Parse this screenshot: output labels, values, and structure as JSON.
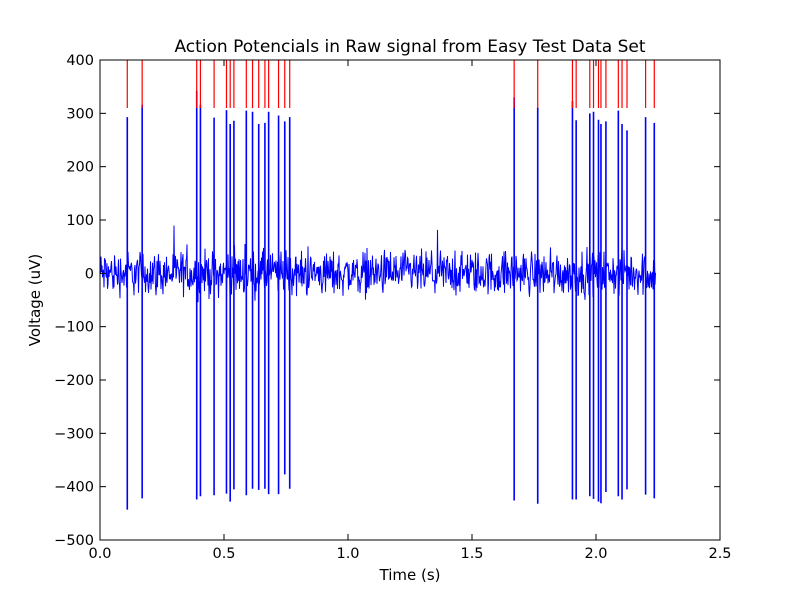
{
  "chart_data": {
    "type": "line",
    "title": "Action Potencials in Raw signal from Easy Test Data Set",
    "xlabel": "Time (s)",
    "ylabel": "Voltage (uV)",
    "xlim": [
      0.0,
      2.5
    ],
    "ylim": [
      -500,
      400
    ],
    "x_ticks": [
      0.0,
      0.5,
      1.0,
      1.5,
      2.0,
      2.5
    ],
    "x_tick_labels": [
      "0.0",
      "0.5",
      "1.0",
      "1.5",
      "2.0",
      "2.5"
    ],
    "y_ticks": [
      400,
      300,
      200,
      100,
      0,
      -100,
      -200,
      -300,
      -400,
      -500
    ],
    "y_tick_labels": [
      "400",
      "300",
      "200",
      "100",
      "0",
      "−100",
      "−200",
      "−300",
      "−400",
      "−500"
    ],
    "grid": false,
    "legend": "none",
    "signal": {
      "color": "#0000ff",
      "x_range": [
        0.0,
        2.24
      ],
      "baseline_noise_amplitude_uV": 45
    },
    "series": [
      {
        "color": "#0000ff",
        "peaks": [
          {
            "t": 0.11,
            "max": 293,
            "min": -443
          },
          {
            "t": 0.17,
            "max": 316,
            "min": -422
          },
          {
            "t": 0.39,
            "max": 342,
            "min": -424
          },
          {
            "t": 0.405,
            "max": 316,
            "min": -418
          },
          {
            "t": 0.46,
            "max": 292,
            "min": -416
          },
          {
            "t": 0.51,
            "max": 306,
            "min": -413
          },
          {
            "t": 0.525,
            "max": 280,
            "min": -428
          },
          {
            "t": 0.54,
            "max": 286,
            "min": -405
          },
          {
            "t": 0.59,
            "max": 305,
            "min": -416
          },
          {
            "t": 0.615,
            "max": 303,
            "min": -404
          },
          {
            "t": 0.64,
            "max": 280,
            "min": -406
          },
          {
            "t": 0.665,
            "max": 282,
            "min": -404
          },
          {
            "t": 0.68,
            "max": 303,
            "min": -414
          },
          {
            "t": 0.72,
            "max": 296,
            "min": -414
          },
          {
            "t": 0.745,
            "max": 285,
            "min": -377
          },
          {
            "t": 0.765,
            "max": 293,
            "min": -404
          },
          {
            "t": 1.67,
            "max": 330,
            "min": -426
          },
          {
            "t": 1.765,
            "max": 311,
            "min": -432
          },
          {
            "t": 1.905,
            "max": 323,
            "min": -424
          },
          {
            "t": 1.92,
            "max": 287,
            "min": -424
          },
          {
            "t": 1.975,
            "max": 300,
            "min": -418
          },
          {
            "t": 1.99,
            "max": 303,
            "min": -423
          },
          {
            "t": 2.01,
            "max": 288,
            "min": -428
          },
          {
            "t": 2.02,
            "max": 280,
            "min": -431
          },
          {
            "t": 2.04,
            "max": 285,
            "min": -410
          },
          {
            "t": 2.09,
            "max": 305,
            "min": -418
          },
          {
            "t": 2.105,
            "max": 280,
            "min": -424
          },
          {
            "t": 2.125,
            "max": 268,
            "min": -405
          },
          {
            "t": 2.2,
            "max": 293,
            "min": -415
          },
          {
            "t": 2.235,
            "max": 282,
            "min": -422
          }
        ]
      },
      {
        "color": "#ff0000",
        "markers": {
          "y_from": 310,
          "y_to": 400,
          "t": [
            0.11,
            0.17,
            0.39,
            0.405,
            0.46,
            0.51,
            0.525,
            0.54,
            0.59,
            0.615,
            0.64,
            0.665,
            0.68,
            0.72,
            0.745,
            0.765,
            1.67,
            1.765,
            1.905,
            1.92,
            1.975,
            1.99,
            2.01,
            2.02,
            2.04,
            2.09,
            2.105,
            2.125,
            2.2,
            2.235
          ]
        }
      }
    ]
  }
}
